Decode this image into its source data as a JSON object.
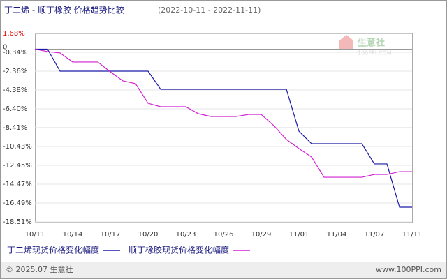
{
  "chart_data": {
    "type": "line",
    "title": "丁二烯 - 顺丁橡胶 价格趋势比较",
    "subtitle": "(2022-10-11 - 2022-11-11)",
    "categories": [
      "10/11",
      null,
      null,
      "10/14",
      null,
      null,
      "10/17",
      null,
      null,
      "10/20",
      null,
      null,
      "10/23",
      null,
      null,
      "10/26",
      null,
      null,
      "10/29",
      null,
      null,
      "11/01",
      null,
      null,
      "11/04",
      null,
      null,
      "11/07",
      null,
      null,
      "11/11"
    ],
    "series": [
      {
        "name": "丁二烯现货价格变化幅度",
        "color": "#1a1aa6",
        "values": [
          0,
          0,
          -2.36,
          -2.36,
          -2.36,
          -2.36,
          -2.36,
          -2.36,
          -2.36,
          -2.36,
          -4.3,
          -4.3,
          -4.3,
          -4.3,
          -4.3,
          -4.3,
          -4.3,
          -4.3,
          -4.3,
          -4.3,
          -4.3,
          -8.79,
          -10.13,
          -10.13,
          -10.13,
          -10.13,
          -10.13,
          -12.3,
          -12.3,
          -16.94,
          -16.94
        ]
      },
      {
        "name": "顺丁橡胶现货价格变化幅度",
        "color": "#d21fd2",
        "values": [
          0,
          -0.26,
          -0.41,
          -1.38,
          -1.38,
          -1.38,
          -2.43,
          -3.4,
          -3.7,
          -5.8,
          -6.17,
          -6.17,
          -6.17,
          -6.92,
          -7.22,
          -7.22,
          -7.22,
          -7.0,
          -7.0,
          -8.19,
          -9.68,
          -10.66,
          -11.56,
          -13.73,
          -13.73,
          -13.73,
          -13.73,
          -13.43,
          -13.43,
          -13.13,
          -13.13
        ]
      }
    ],
    "ylim": [
      -18.51,
      1.68
    ],
    "yticks": [
      {
        "value": 1.68,
        "label": "1.68%"
      },
      {
        "value": -0.34,
        "label": "-0.34%"
      },
      {
        "value": -2.36,
        "label": "-2.36%"
      },
      {
        "value": -4.38,
        "label": "-4.38%"
      },
      {
        "value": -6.4,
        "label": "-6.40%"
      },
      {
        "value": -8.41,
        "label": "-8.41%"
      },
      {
        "value": -10.43,
        "label": "-10.43%"
      },
      {
        "value": -12.45,
        "label": "-12.45%"
      },
      {
        "value": -14.47,
        "label": "-14.47%"
      },
      {
        "value": -16.49,
        "label": "-16.49%"
      },
      {
        "value": -18.51,
        "label": "-18.51%"
      }
    ],
    "zero_line": {
      "value": 0,
      "label": "0"
    },
    "grid": true,
    "watermark": {
      "brand": "生意社",
      "site": "100PPI.COM"
    },
    "footer_left": "© 2025.07 生意社",
    "footer_right": "www.100PPI.com"
  }
}
